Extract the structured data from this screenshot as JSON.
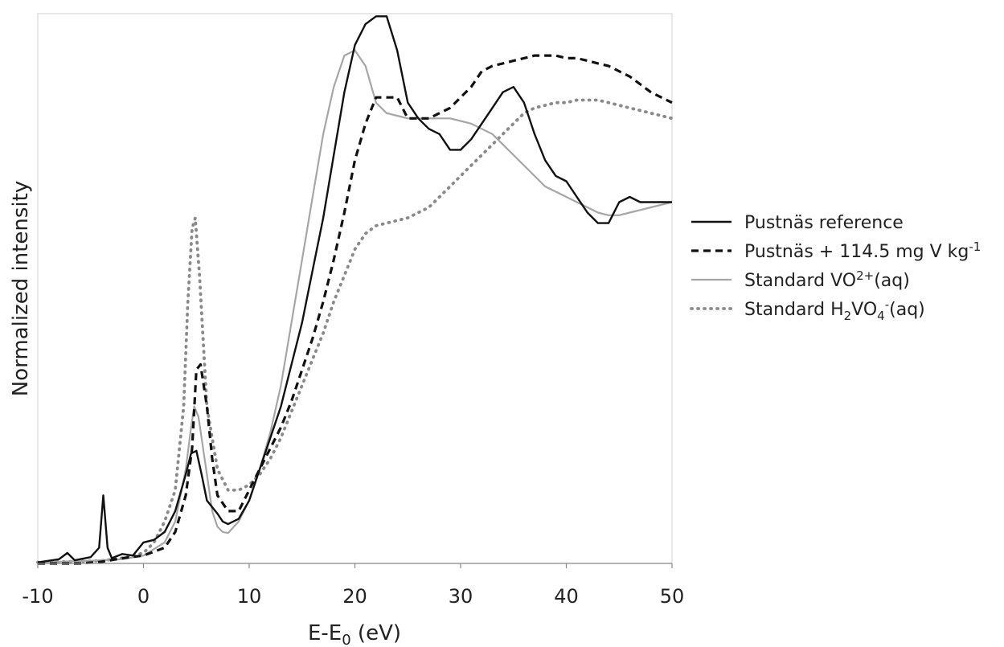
{
  "chart_data": {
    "type": "line",
    "xlabel": "E-E0 (eV)",
    "xlabel_parts": {
      "main": "E-E",
      "sub": "0",
      "unit": " (eV)"
    },
    "ylabel": "Normalized intensity",
    "xlim": [
      -10,
      50
    ],
    "ylim": [
      0,
      1.05
    ],
    "xticks": [
      -10,
      0,
      10,
      20,
      30,
      40,
      50
    ],
    "y_tick_labels_shown": false,
    "grid": false,
    "legend_position": "right",
    "series": [
      {
        "name": "Pustnäs reference",
        "legend_parts": [
          {
            "t": "Pustnäs reference"
          }
        ],
        "color": "#111111",
        "style": "solid",
        "width": 2.4,
        "x": [
          -10,
          -8,
          -7.2,
          -6.5,
          -5,
          -4.2,
          -3.8,
          -3.4,
          -3,
          -2,
          -1,
          0,
          1,
          2,
          3,
          4,
          4.5,
          5,
          5.5,
          6,
          7,
          7.5,
          8,
          9,
          10,
          11,
          12,
          13,
          14,
          15,
          16,
          17,
          18,
          19,
          20,
          21,
          22,
          23,
          24,
          25,
          26,
          27,
          28,
          29,
          30,
          31,
          32,
          33,
          34,
          35,
          36,
          37,
          38,
          39,
          40,
          41,
          42,
          43,
          44,
          45,
          46,
          47,
          48,
          49,
          50
        ],
        "y": [
          0.002,
          0.008,
          0.02,
          0.006,
          0.012,
          0.03,
          0.13,
          0.03,
          0.01,
          0.018,
          0.015,
          0.04,
          0.045,
          0.06,
          0.1,
          0.17,
          0.21,
          0.215,
          0.17,
          0.12,
          0.095,
          0.08,
          0.075,
          0.085,
          0.12,
          0.18,
          0.24,
          0.3,
          0.38,
          0.46,
          0.56,
          0.66,
          0.78,
          0.9,
          0.99,
          1.03,
          1.045,
          1.045,
          0.98,
          0.88,
          0.85,
          0.83,
          0.82,
          0.79,
          0.79,
          0.81,
          0.84,
          0.87,
          0.9,
          0.91,
          0.88,
          0.82,
          0.77,
          0.74,
          0.73,
          0.7,
          0.67,
          0.65,
          0.65,
          0.69,
          0.7,
          0.69,
          0.69,
          0.69,
          0.69
        ]
      },
      {
        "name": "Pustnäs + 114.5 mg V kg-1",
        "legend_parts": [
          {
            "t": "Pustnäs + 114.5 mg V kg"
          },
          {
            "t": "-1",
            "sup": true
          }
        ],
        "color": "#111111",
        "style": "dashed",
        "width": 3.2,
        "x": [
          -10,
          -6,
          -4,
          -2,
          0,
          2,
          3,
          4,
          4.6,
          5,
          5.4,
          6,
          6.5,
          7,
          8,
          9,
          10,
          11,
          12,
          13,
          14,
          15,
          16,
          17,
          18,
          19,
          20,
          21,
          22,
          23,
          24,
          25,
          26,
          27,
          28,
          29,
          30,
          31,
          32,
          33,
          34,
          35,
          36,
          37,
          38,
          39,
          40,
          41,
          42,
          43,
          44,
          45,
          46,
          47,
          48,
          49,
          50
        ],
        "y": [
          0,
          0,
          0.003,
          0.01,
          0.015,
          0.03,
          0.06,
          0.13,
          0.22,
          0.37,
          0.38,
          0.3,
          0.2,
          0.13,
          0.1,
          0.1,
          0.14,
          0.18,
          0.22,
          0.26,
          0.31,
          0.37,
          0.43,
          0.5,
          0.58,
          0.67,
          0.77,
          0.84,
          0.89,
          0.89,
          0.89,
          0.85,
          0.85,
          0.85,
          0.86,
          0.87,
          0.89,
          0.91,
          0.94,
          0.95,
          0.955,
          0.96,
          0.965,
          0.97,
          0.97,
          0.97,
          0.965,
          0.965,
          0.96,
          0.955,
          0.95,
          0.94,
          0.93,
          0.915,
          0.9,
          0.89,
          0.88
        ]
      },
      {
        "name": "Standard VO2+(aq)",
        "legend_parts": [
          {
            "t": "Standard VO"
          },
          {
            "t": "2+",
            "sup": true
          },
          {
            "t": "(aq)"
          }
        ],
        "color": "#a6a6a6",
        "style": "solid",
        "width": 2.2,
        "x": [
          -10,
          -5,
          -2,
          0,
          2,
          3,
          4,
          4.5,
          4.8,
          5.2,
          6,
          6.5,
          7,
          7.5,
          8,
          9,
          10,
          11,
          12,
          13,
          14,
          15,
          16,
          17,
          18,
          19,
          20,
          21,
          22,
          23,
          24,
          25,
          26,
          27,
          28,
          29,
          30,
          31,
          32,
          33,
          34,
          35,
          36,
          37,
          38,
          39,
          40,
          41,
          42,
          43,
          44,
          45,
          46,
          47,
          48,
          49,
          50
        ],
        "y": [
          0.002,
          0.005,
          0.008,
          0.015,
          0.04,
          0.08,
          0.18,
          0.26,
          0.3,
          0.28,
          0.17,
          0.1,
          0.07,
          0.06,
          0.058,
          0.08,
          0.12,
          0.18,
          0.25,
          0.34,
          0.46,
          0.58,
          0.7,
          0.82,
          0.91,
          0.97,
          0.98,
          0.95,
          0.88,
          0.86,
          0.855,
          0.85,
          0.85,
          0.85,
          0.85,
          0.85,
          0.845,
          0.84,
          0.83,
          0.82,
          0.8,
          0.78,
          0.76,
          0.74,
          0.72,
          0.71,
          0.7,
          0.69,
          0.68,
          0.67,
          0.665,
          0.665,
          0.67,
          0.675,
          0.68,
          0.685,
          0.69
        ]
      },
      {
        "name": "Standard H2VO4-(aq)",
        "legend_parts": [
          {
            "t": "Standard H"
          },
          {
            "t": "2",
            "sub": true
          },
          {
            "t": "VO"
          },
          {
            "t": "4",
            "sub": true
          },
          {
            "t": "-",
            "sup": true
          },
          {
            "t": "(aq)"
          }
        ],
        "color": "#8a8a8a",
        "style": "dotted",
        "width": 3.8,
        "x": [
          -10,
          -4,
          -2,
          0,
          1,
          2,
          3,
          3.8,
          4.2,
          4.6,
          4.9,
          5.3,
          6,
          7,
          8,
          9,
          10,
          11,
          12,
          13,
          14,
          15,
          16,
          17,
          18,
          19,
          20,
          21,
          22,
          23,
          24,
          25,
          26,
          27,
          28,
          29,
          30,
          31,
          32,
          33,
          34,
          35,
          36,
          37,
          38,
          39,
          40,
          41,
          42,
          43,
          44,
          45,
          46,
          47,
          48,
          49,
          50
        ],
        "y": [
          0.002,
          0.005,
          0.01,
          0.02,
          0.04,
          0.08,
          0.14,
          0.3,
          0.5,
          0.64,
          0.66,
          0.55,
          0.3,
          0.18,
          0.14,
          0.14,
          0.15,
          0.17,
          0.2,
          0.24,
          0.29,
          0.34,
          0.39,
          0.44,
          0.5,
          0.55,
          0.6,
          0.63,
          0.645,
          0.65,
          0.655,
          0.66,
          0.67,
          0.68,
          0.7,
          0.72,
          0.74,
          0.76,
          0.78,
          0.8,
          0.82,
          0.84,
          0.86,
          0.87,
          0.875,
          0.88,
          0.88,
          0.885,
          0.885,
          0.885,
          0.88,
          0.875,
          0.87,
          0.865,
          0.86,
          0.855,
          0.85
        ]
      }
    ]
  }
}
